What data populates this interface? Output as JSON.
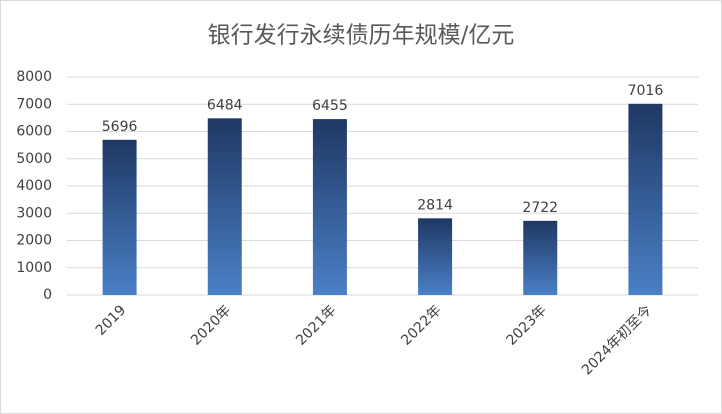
{
  "chart_data": {
    "type": "bar",
    "title": "银行发行永续债历年规模/亿元",
    "categories": [
      "2019",
      "2020年",
      "2021年",
      "2022年",
      "2023年",
      "2024年初至今"
    ],
    "values": [
      5696,
      6484,
      6455,
      2814,
      2722,
      7016
    ],
    "color": "#2f5a94",
    "ylim": [
      0,
      8000
    ],
    "yticks": [
      0,
      1000,
      2000,
      3000,
      4000,
      5000,
      6000,
      7000,
      8000
    ],
    "grid": true
  }
}
